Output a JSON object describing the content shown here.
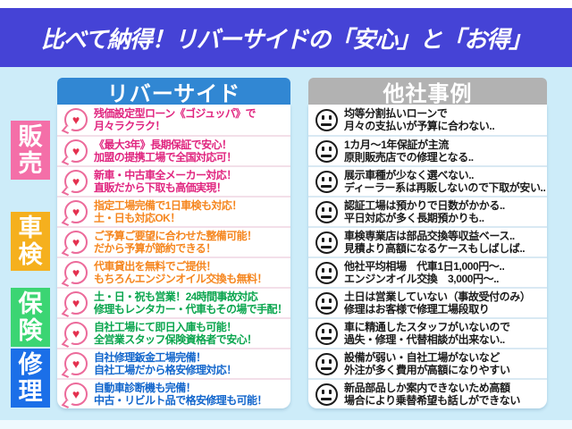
{
  "banner": {
    "title": "比べて納得！リバーサイドの「安心」と「お得」"
  },
  "categories": [
    {
      "id": "sales",
      "label": "販売",
      "rows": "1-3",
      "label_bg": "#f46fa8",
      "text_color": "#e0257f"
    },
    {
      "id": "inspection",
      "label": "車検",
      "rows": "4-6",
      "label_bg": "#f5b01e",
      "text_color": "#f5861f"
    },
    {
      "id": "insurance",
      "label": "保険",
      "rows": "7-8",
      "label_bg": "#3bd573",
      "text_color": "#0aa54e"
    },
    {
      "id": "repair",
      "label": "修理",
      "rows": "9-10",
      "label_bg": "#1b6fe8",
      "text_color": "#1266cc"
    }
  ],
  "left_panel": {
    "title": "リバーサイド",
    "header_bg": "#3187d3",
    "row_icon": "heart-bubble-icon",
    "rows": [
      {
        "line1": "残価設定型ローン《ゴジュッパ》で",
        "line2": "月々ラクラク！"
      },
      {
        "line1": "《最大3年》長期保証で安心！",
        "line2": "加盟の提携工場で全国対応可！"
      },
      {
        "line1": "新車・中古車全メーカー対応！",
        "line2": "直販だから下取も高価実現！"
      },
      {
        "line1": "指定工場完備で1日車検も対応！",
        "line2": "土・日も対応OK！"
      },
      {
        "line1": "ご予算ご要望に合わせた整備可能！",
        "line2": "だから予算が節約できる！"
      },
      {
        "line1": "代車貸出を無料でご提供！",
        "line2": "もちろんエンジンオイル交換も無料！"
      },
      {
        "line1": "土・日・祝も営業！24時間事故対応",
        "line2": "修理もレンタカー・代車もその場で手配！"
      },
      {
        "line1": "自社工場にて即日入庫も可能！",
        "line2": "全営業スタッフ保険資格者で安心！"
      },
      {
        "line1": "自社修理鈑金工場完備！",
        "line2": "自社工場だから格安修理対応！"
      },
      {
        "line1": "自動車診断機も完備！",
        "line2": "中古・リビルト品で格安修理も可能！"
      }
    ]
  },
  "right_panel": {
    "title": "他社事例",
    "header_bg": "#b2b2b2",
    "row_icon": "neutral-face-icon",
    "rows": [
      {
        "line1": "均等分割払いローンで",
        "line2": "月々の支払いが予算に合わない.."
      },
      {
        "line1": "1カ月〜1年保証が主流",
        "line2": "原則販売店での修理となる.."
      },
      {
        "line1": "展示車種が少なく選べない..",
        "line2": "ディーラー系は再販しないので下取が安い.."
      },
      {
        "line1": "認証工場は預かりで日数がかかる..",
        "line2": "平日対応が多く長期預かりも.."
      },
      {
        "line1": "車検専業店は部品交換等収益ベース..",
        "line2": "見積より高額になるケースもしばしば.."
      },
      {
        "line1": "他社平均相場　代車1日1,000円〜..",
        "line2": "エンジンオイル交換　3,000円〜.."
      },
      {
        "line1": "土日は営業していない（事故受付のみ）",
        "line2": "修理はお客様で修理工場段取り"
      },
      {
        "line1": "車に精通したスタッフがいないので",
        "line2": "過失・修理・代替相談が出来ない.."
      },
      {
        "line1": "設備が弱い・自社工場がないなど",
        "line2": "外注が多く費用が高額になりやすい"
      },
      {
        "line1": "新品部品しか案内できないため高額",
        "line2": "場合により乗替希望も話しができない"
      }
    ]
  },
  "colors": {
    "banner_bg": "#4543d6",
    "page_bg": "#cdecf9",
    "heart": "#e4304e",
    "heart_ring": "#ec6a9a",
    "face": "#1a1a1a"
  }
}
